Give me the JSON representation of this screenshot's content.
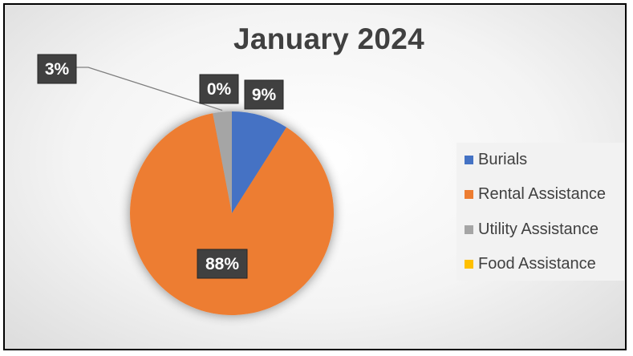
{
  "chart_data": {
    "type": "pie",
    "title": "January 2024",
    "categories": [
      "Burials",
      "Rental Assistance",
      "Utility Assistance",
      "Food Assistance"
    ],
    "values": [
      9,
      88,
      3,
      0
    ],
    "data_labels": [
      "9%",
      "88%",
      "3%",
      "0%"
    ],
    "colors": [
      "#4472C4",
      "#ED7D31",
      "#A5A5A5",
      "#FFC000"
    ],
    "legend_position": "right",
    "start_angle_deg": 0,
    "direction": "clockwise"
  }
}
